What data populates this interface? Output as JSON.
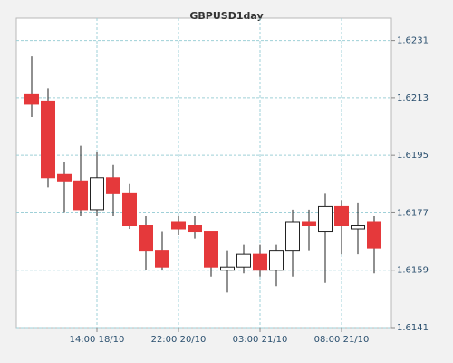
{
  "chart_data": {
    "type": "candlestick",
    "title": "GBPUSD1day",
    "categories": [
      null,
      null,
      null,
      null,
      "14:00 18/10",
      null,
      null,
      null,
      null,
      "22:00 20/10",
      null,
      null,
      null,
      null,
      "03:00 21/10",
      null,
      null,
      null,
      null,
      "08:00 21/10",
      null,
      null
    ],
    "series": [
      {
        "open": [
          1.6214,
          1.6212,
          1.6189,
          1.6187,
          1.6178,
          1.6188,
          1.6183,
          1.6173,
          1.6165,
          1.6174,
          1.6173,
          1.6171,
          1.6159,
          1.616,
          1.6164,
          1.6159,
          1.6165,
          1.6174,
          1.6171,
          1.6179,
          1.6172,
          1.6174
        ],
        "high": [
          1.6226,
          1.6216,
          1.6193,
          1.6198,
          1.6196,
          1.6192,
          1.6186,
          1.6176,
          1.6171,
          1.6176,
          1.6176,
          1.6171,
          1.6165,
          1.6167,
          1.6167,
          1.6167,
          1.6178,
          1.6178,
          1.6183,
          1.6181,
          1.618,
          1.6176
        ],
        "low": [
          1.6207,
          1.6185,
          1.6177,
          1.6176,
          1.6176,
          1.6176,
          1.6172,
          1.6159,
          1.6159,
          1.617,
          1.6169,
          1.6157,
          1.6152,
          1.6158,
          1.6157,
          1.6154,
          1.6157,
          1.6165,
          1.6155,
          1.6164,
          1.6164,
          1.6158
        ],
        "close": [
          1.6211,
          1.6188,
          1.6187,
          1.6178,
          1.6188,
          1.6183,
          1.6173,
          1.6165,
          1.616,
          1.6172,
          1.6171,
          1.616,
          1.616,
          1.6164,
          1.6159,
          1.6165,
          1.6174,
          1.6173,
          1.6179,
          1.6173,
          1.6173,
          1.6166
        ]
      }
    ],
    "up_color": "#ffffff",
    "down_color": "#e5393b",
    "ylim": [
      1.6141,
      1.6238
    ],
    "yticks": [
      1.6141,
      1.6159,
      1.6177,
      1.6195,
      1.6213,
      1.6231
    ],
    "grid": true
  }
}
